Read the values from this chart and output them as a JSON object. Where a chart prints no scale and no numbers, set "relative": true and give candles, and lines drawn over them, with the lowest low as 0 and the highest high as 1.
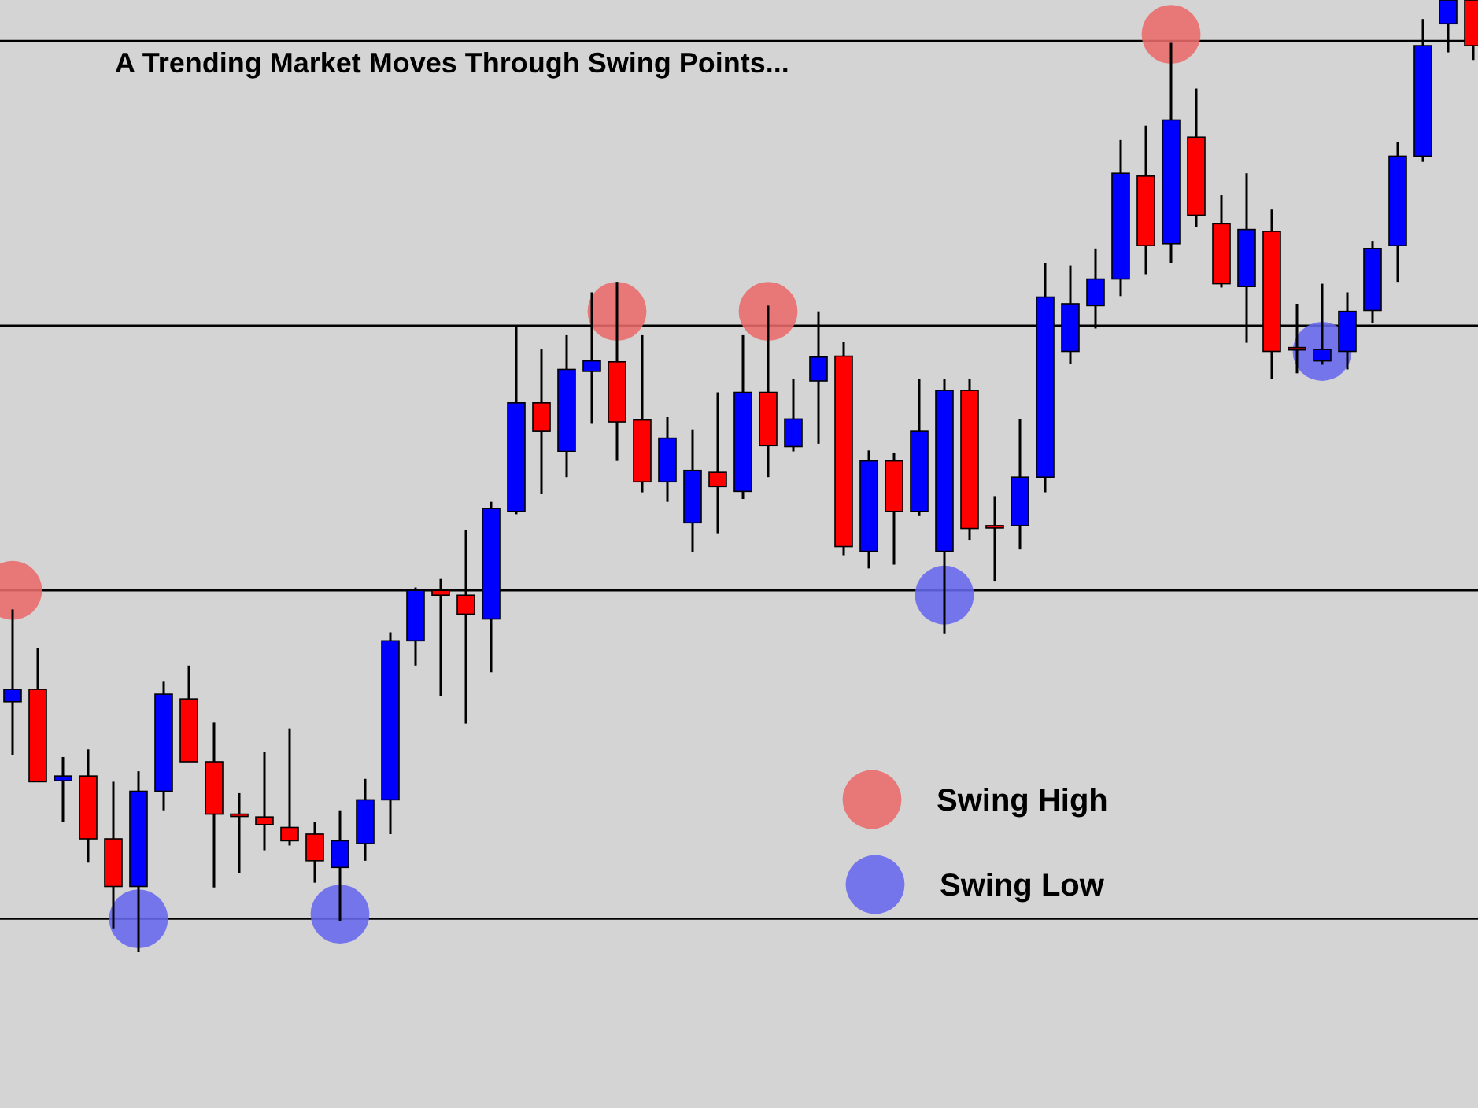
{
  "chart_data": {
    "type": "candlestick",
    "title": "A Trending Market Moves Through Swing Points...",
    "relative": true,
    "categories": [
      null,
      null,
      null,
      null,
      null,
      null,
      null,
      null,
      null,
      null,
      null,
      null,
      null,
      null,
      null,
      null,
      null,
      null,
      null,
      null,
      null,
      null,
      null,
      null,
      null,
      null,
      null,
      null,
      null,
      null,
      null,
      null,
      null,
      null,
      null,
      null,
      null,
      null,
      null,
      null,
      null,
      null,
      null,
      null,
      null,
      null,
      null,
      null,
      null,
      null,
      null,
      null,
      null,
      null,
      null,
      null,
      null,
      null,
      null
    ],
    "ohlc": [
      [
        0.263,
        0.36,
        0.207,
        0.276
      ],
      [
        0.276,
        0.319,
        0.179,
        0.179
      ],
      [
        0.18,
        0.205,
        0.137,
        0.185
      ],
      [
        0.185,
        0.213,
        0.094,
        0.119
      ],
      [
        0.119,
        0.179,
        0.025,
        0.069
      ],
      [
        0.069,
        0.19,
        0,
        0.169
      ],
      [
        0.169,
        0.284,
        0.149,
        0.271
      ],
      [
        0.266,
        0.301,
        0.2,
        0.2
      ],
      [
        0.2,
        0.241,
        0.068,
        0.145
      ],
      [
        0.145,
        0.167,
        0.083,
        0.144
      ],
      [
        0.142,
        0.21,
        0.107,
        0.134
      ],
      [
        0.131,
        0.235,
        0.112,
        0.117
      ],
      [
        0.124,
        0.137,
        0.073,
        0.096
      ],
      [
        0.089,
        0.149,
        0.033,
        0.117
      ],
      [
        0.114,
        0.182,
        0.096,
        0.16
      ],
      [
        0.16,
        0.336,
        0.124,
        0.327
      ],
      [
        0.327,
        0.383,
        0.301,
        0.38
      ],
      [
        0.38,
        0.392,
        0.269,
        0.375
      ],
      [
        0.375,
        0.443,
        0.24,
        0.355
      ],
      [
        0.35,
        0.473,
        0.294,
        0.466
      ],
      [
        0.463,
        0.658,
        0.46,
        0.577
      ],
      [
        0.577,
        0.633,
        0.481,
        0.547
      ],
      [
        0.526,
        0.648,
        0.499,
        0.612
      ],
      [
        0.61,
        0.693,
        0.555,
        0.621
      ],
      [
        0.62,
        0.704,
        0.516,
        0.557
      ],
      [
        0.559,
        0.648,
        0.483,
        0.494
      ],
      [
        0.494,
        0.562,
        0.473,
        0.54
      ],
      [
        0.451,
        0.549,
        0.42,
        0.506
      ],
      [
        0.504,
        0.588,
        0.44,
        0.489
      ],
      [
        0.484,
        0.648,
        0.476,
        0.588
      ],
      [
        0.588,
        0.679,
        0.499,
        0.532
      ],
      [
        0.531,
        0.602,
        0.526,
        0.56
      ],
      [
        0.6,
        0.673,
        0.534,
        0.625
      ],
      [
        0.626,
        0.641,
        0.417,
        0.426
      ],
      [
        0.421,
        0.527,
        0.403,
        0.516
      ],
      [
        0.516,
        0.524,
        0.407,
        0.463
      ],
      [
        0.463,
        0.602,
        0.458,
        0.547
      ],
      [
        0.421,
        0.602,
        0.334,
        0.59
      ],
      [
        0.59,
        0.602,
        0.433,
        0.445
      ],
      [
        0.448,
        0.479,
        0.39,
        0.446
      ],
      [
        0.448,
        0.56,
        0.423,
        0.499
      ],
      [
        0.499,
        0.724,
        0.483,
        0.688
      ],
      [
        0.631,
        0.721,
        0.618,
        0.681
      ],
      [
        0.679,
        0.739,
        0.655,
        0.707
      ],
      [
        0.707,
        0.853,
        0.689,
        0.818
      ],
      [
        0.815,
        0.868,
        0.712,
        0.742
      ],
      [
        0.744,
        0.955,
        0.724,
        0.874
      ],
      [
        0.856,
        0.907,
        0.762,
        0.774
      ],
      [
        0.765,
        0.795,
        0.698,
        0.702
      ],
      [
        0.699,
        0.818,
        0.64,
        0.759
      ],
      [
        0.757,
        0.78,
        0.602,
        0.631
      ],
      [
        0.635,
        0.681,
        0.608,
        0.633
      ],
      [
        0.621,
        0.702,
        0.617,
        0.633
      ],
      [
        0.631,
        0.693,
        0.612,
        0.673
      ],
      [
        0.674,
        0.747,
        0.661,
        0.739
      ],
      [
        0.742,
        0.851,
        0.704,
        0.836
      ],
      [
        0.836,
        0.98,
        0.83,
        0.952
      ],
      [
        0.975,
        1,
        0.945,
        1
      ],
      [
        1,
        1,
        0.937,
        0.952
      ]
    ],
    "series": [
      {
        "name": "Swing High",
        "type": "scatter",
        "color": "#eb6b6b",
        "values": [
          0.38,
          null,
          null,
          null,
          null,
          null,
          null,
          null,
          null,
          null,
          null,
          null,
          null,
          null,
          null,
          null,
          null,
          null,
          null,
          null,
          null,
          null,
          null,
          null,
          0.673,
          null,
          null,
          null,
          null,
          null,
          0.673,
          null,
          null,
          null,
          null,
          null,
          null,
          null,
          null,
          null,
          null,
          null,
          null,
          null,
          null,
          null,
          0.964,
          null,
          null,
          null,
          null,
          null,
          null,
          null,
          null,
          null,
          null,
          null,
          null
        ]
      },
      {
        "name": "Swing Low",
        "type": "scatter",
        "color": "#6868ee",
        "values": [
          null,
          null,
          null,
          null,
          null,
          0.035,
          null,
          null,
          null,
          null,
          null,
          null,
          null,
          0.04,
          null,
          null,
          null,
          null,
          null,
          null,
          null,
          null,
          null,
          null,
          null,
          null,
          null,
          null,
          null,
          null,
          null,
          null,
          null,
          null,
          null,
          null,
          null,
          0.375,
          null,
          null,
          null,
          null,
          null,
          null,
          null,
          null,
          null,
          null,
          null,
          null,
          null,
          null,
          0.631,
          null,
          null,
          null,
          null,
          null,
          null
        ]
      }
    ],
    "marker": "circle",
    "ref_lines": [
      {
        "axis": "y",
        "value": 0.38,
        "color": "#000000"
      },
      {
        "axis": "y",
        "value": 0.658,
        "color": "#000000"
      },
      {
        "axis": "y",
        "value": 0.957,
        "color": "#000000"
      },
      {
        "axis": "y",
        "value": 0.035,
        "color": "#000000"
      }
    ],
    "legend": "bottom right"
  }
}
